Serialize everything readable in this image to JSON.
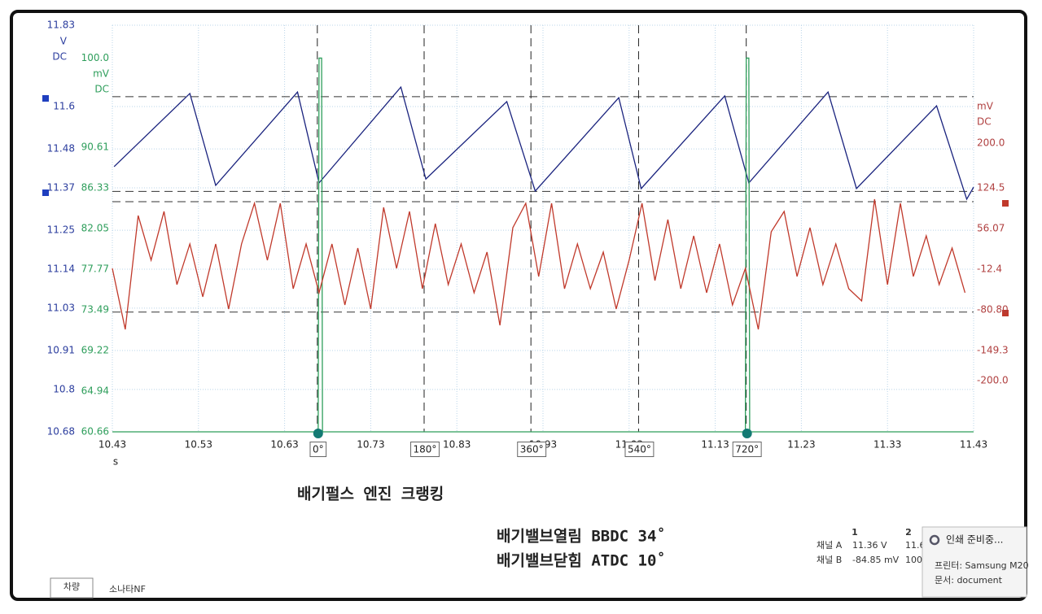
{
  "chart_data": {
    "type": "line",
    "xlim": [
      10.43,
      11.43
    ],
    "xticks": [
      10.43,
      10.53,
      10.63,
      10.73,
      10.83,
      10.93,
      11.03,
      11.13,
      11.23,
      11.33,
      11.43
    ],
    "xlabel": "s",
    "ylim": [
      10.68,
      11.83
    ],
    "yticks": [
      11.83,
      11.6,
      11.48,
      11.37,
      11.25,
      11.14,
      11.03,
      10.91,
      10.8,
      10.68
    ],
    "yunit": [
      "V",
      "DC"
    ],
    "y2lim": [
      60.66,
      103.46
    ],
    "y2ticks": [
      {
        "value": 100,
        "label": "100.0"
      },
      90.61,
      86.33,
      82.05,
      77.77,
      73.49,
      69.22,
      64.94,
      60.66
    ],
    "y2unit": [
      "mV",
      "DC"
    ],
    "y3lim": [
      -286.5,
      398.5
    ],
    "y3ticks": [
      {
        "value": 200,
        "label": "200.0"
      },
      124.5,
      56.07,
      -12.4,
      {
        "value": -80.8,
        "label": "-80.80"
      },
      -149.3,
      {
        "value": -200,
        "label": "-200.0"
      }
    ],
    "y3unit": [
      "mV",
      "DC"
    ],
    "grid": true,
    "series": [
      {
        "color": "#1a237e",
        "axis": "y",
        "x": [
          10.432,
          10.52,
          10.55,
          10.645,
          10.67,
          10.765,
          10.794,
          10.888,
          10.921,
          11.018,
          11.044,
          11.141,
          11.169,
          11.261,
          11.294,
          11.387,
          11.422,
          11.43
        ],
        "values": [
          11.43,
          11.637,
          11.377,
          11.641,
          11.384,
          11.655,
          11.395,
          11.614,
          11.361,
          11.625,
          11.368,
          11.63,
          11.384,
          11.641,
          11.368,
          11.602,
          11.338,
          11.372
        ]
      },
      {
        "color": "#2e9e5b",
        "axis": "y2",
        "x": [
          10.43,
          10.669,
          10.67,
          10.673,
          10.674,
          11.165,
          11.166,
          11.169,
          11.17,
          11.43
        ],
        "values": [
          60.66,
          60.66,
          100,
          100,
          60.66,
          60.66,
          100,
          100,
          60.66,
          60.66
        ]
      },
      {
        "color": "#c0392b",
        "axis": "y3",
        "x": [
          10.43,
          10.445,
          10.46,
          10.475,
          10.49,
          10.505,
          10.52,
          10.535,
          10.55,
          10.565,
          10.58,
          10.595,
          10.61,
          10.625,
          10.64,
          10.655,
          10.67,
          10.685,
          10.7,
          10.715,
          10.73,
          10.745,
          10.76,
          10.775,
          10.79,
          10.805,
          10.82,
          10.835,
          10.85,
          10.865,
          10.88,
          10.895,
          10.91,
          10.925,
          10.94,
          10.955,
          10.97,
          10.985,
          11.0,
          11.015,
          11.03,
          11.045,
          11.06,
          11.075,
          11.09,
          11.105,
          11.12,
          11.135,
          11.15,
          11.165,
          11.18,
          11.195,
          11.21,
          11.225,
          11.24,
          11.255,
          11.27,
          11.285,
          11.3,
          11.315,
          11.33,
          11.345,
          11.36,
          11.375,
          11.39,
          11.405,
          11.42
        ],
        "values": [
          -11.1,
          -113.9,
          77.9,
          2.6,
          84.8,
          -38.5,
          30,
          -59.1,
          30,
          -79.6,
          30,
          98.5,
          2.6,
          98.5,
          -45.4,
          30,
          -52.2,
          30,
          -72.8,
          23.1,
          -79.6,
          91.6,
          -11.1,
          84.8,
          -45.4,
          64.2,
          -38.5,
          30,
          -52.2,
          16.3,
          -107,
          57.4,
          98.5,
          -24.8,
          98.5,
          -45.4,
          30,
          -45.4,
          16.3,
          -79.6,
          2.6,
          98.5,
          -31.7,
          71.1,
          -45.4,
          43.7,
          -52.2,
          30,
          -72.8,
          -11.1,
          -113.9,
          50.5,
          84.8,
          -24.8,
          57.4,
          -38.5,
          30,
          -45.4,
          -65.9,
          105.3,
          -38.5,
          98.5,
          -24.8,
          43.7,
          -38.5,
          23.1,
          -52.2
        ]
      }
    ],
    "rulers": [
      {
        "axis": "y",
        "value": 11.628
      },
      {
        "axis": "y",
        "value": 11.36
      },
      {
        "axis": "y3",
        "value": 101.2
      },
      {
        "axis": "y3",
        "value": -84.85
      }
    ],
    "cursors": [
      {
        "x": 10.668,
        "label": "0°"
      },
      {
        "x": 10.792,
        "label": "180°"
      },
      {
        "x": 10.916,
        "label": "360°"
      },
      {
        "x": 11.041,
        "label": "540°"
      },
      {
        "x": 11.166,
        "label": "720°"
      }
    ]
  },
  "annotations": [
    "배기펄스 엔진 크랭킹",
    "배기밸브열림 BBDC 34˚",
    "배기밸브닫힘 ATDC 10˚"
  ],
  "cursor_table": {
    "columns": [
      "1",
      "2"
    ],
    "rows": [
      [
        "채널 A",
        "11.36 V",
        "11.6"
      ],
      [
        "채널 B",
        "-84.85 mV",
        "100."
      ]
    ]
  },
  "popup": {
    "title": "인쇄 준비중...",
    "printer": "프린터: Samsung M20",
    "document": "문서: document"
  },
  "tabs": [
    "차량",
    "소나타NF"
  ]
}
